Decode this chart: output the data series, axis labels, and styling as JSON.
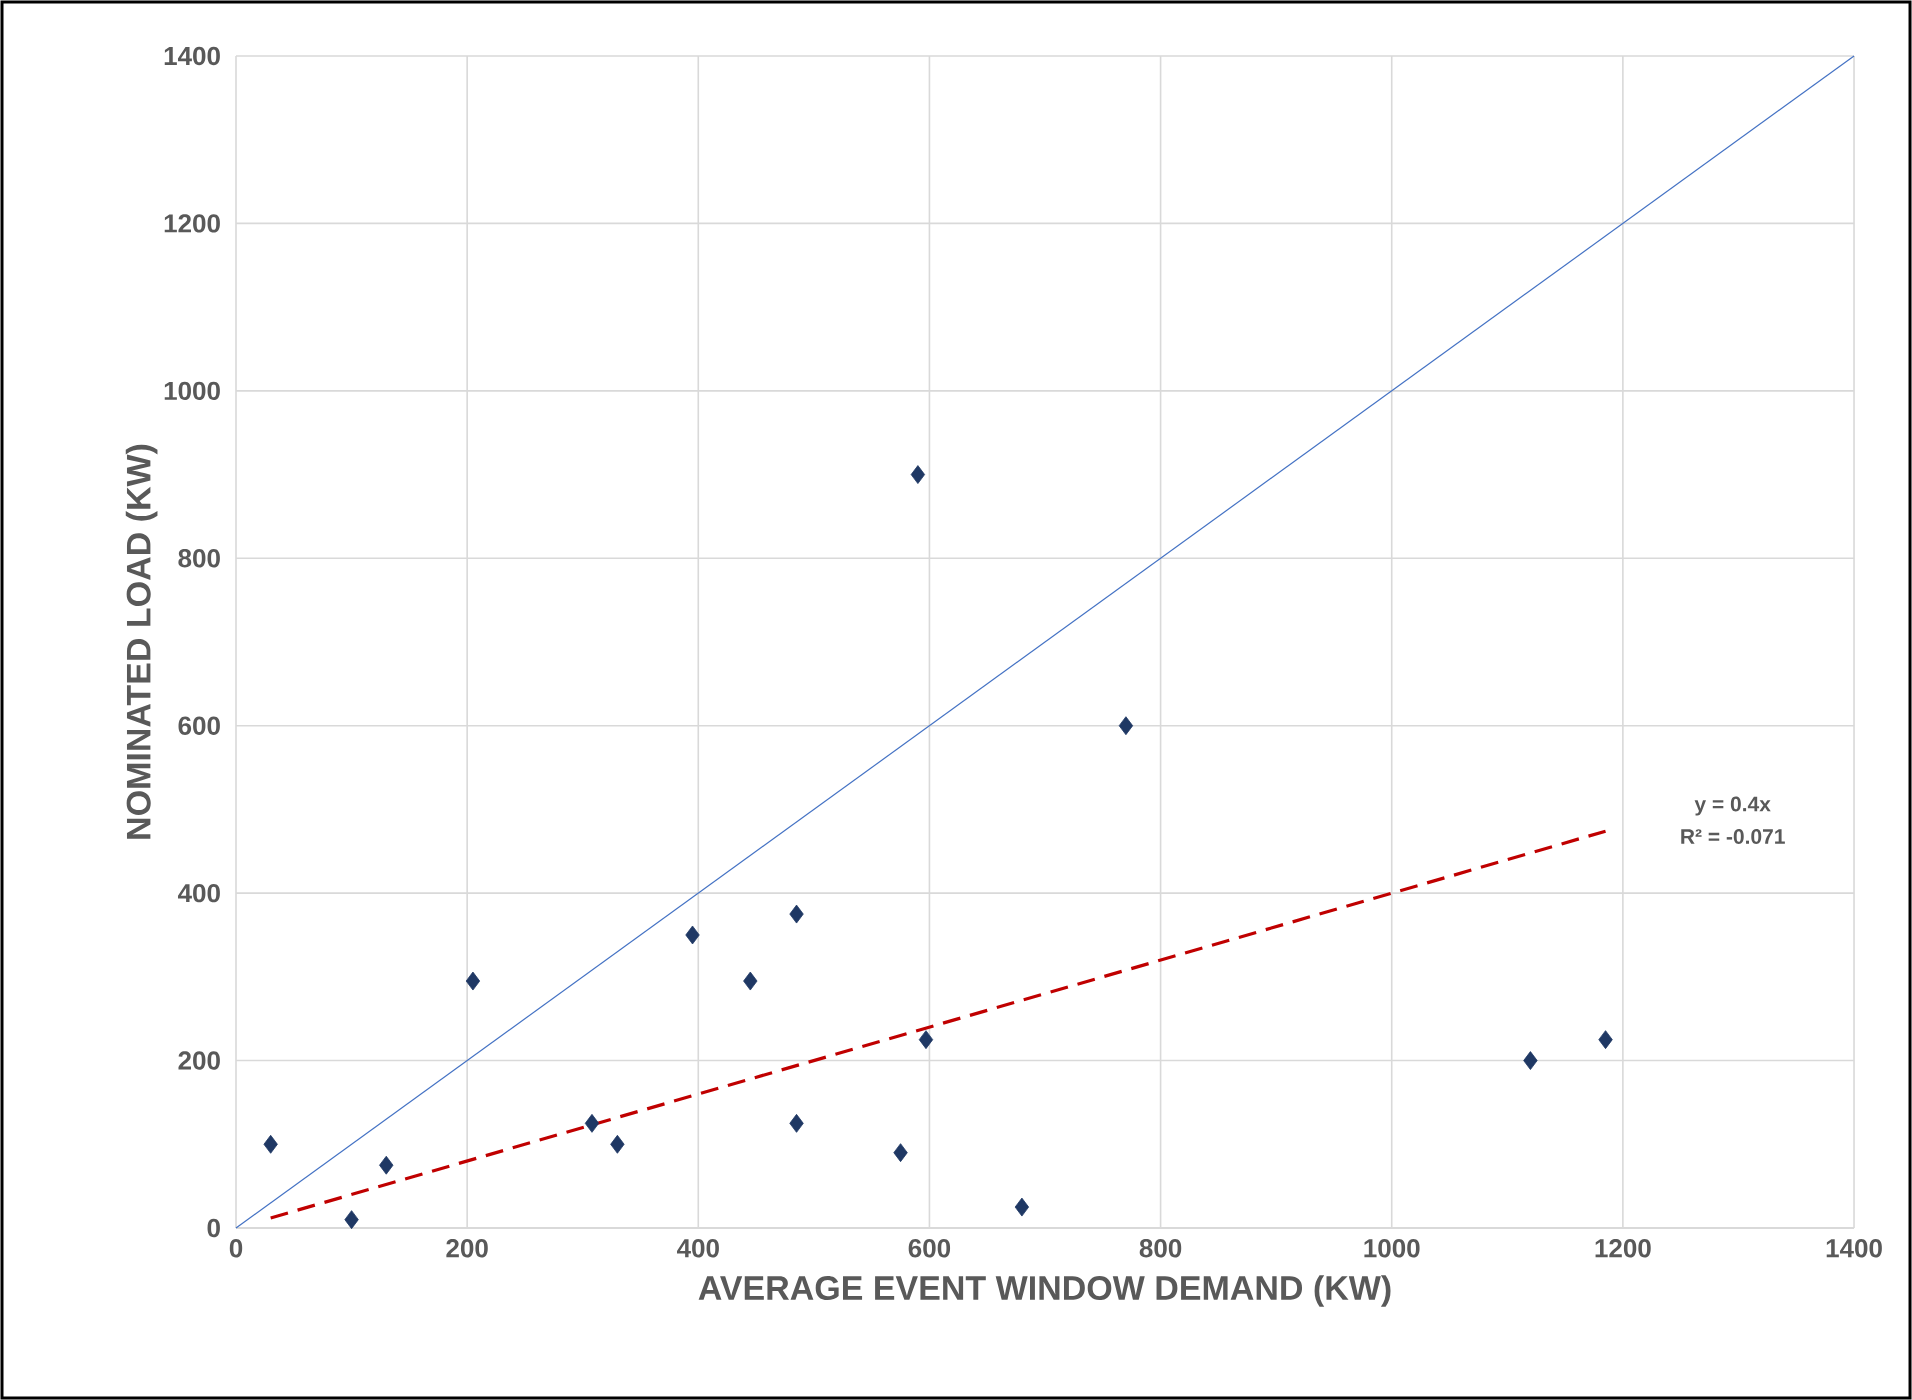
{
  "chart_data": {
    "type": "scatter",
    "xlabel": "AVERAGE EVENT WINDOW DEMAND (KW)",
    "ylabel": "NOMINATED LOAD (KW)",
    "xlim": [
      0,
      1400
    ],
    "ylim": [
      0,
      1400
    ],
    "xticks": [
      0,
      200,
      400,
      600,
      800,
      1000,
      1200,
      1400
    ],
    "yticks": [
      0,
      200,
      400,
      600,
      800,
      1000,
      1200,
      1400
    ],
    "grid": true,
    "series": [
      {
        "color": "#1f3864",
        "marker": "diamond",
        "x": [
          30,
          100,
          130,
          205,
          308,
          330,
          395,
          445,
          485,
          485,
          575,
          597,
          680,
          590,
          770,
          1120,
          1185
        ],
        "values": [
          100,
          10,
          75,
          295,
          125,
          100,
          350,
          295,
          375,
          125,
          90,
          225,
          25,
          900,
          600,
          200,
          225
        ]
      },
      {
        "type": "line",
        "color": "#4472c4",
        "marker": "none",
        "line_style": "solid",
        "x": [
          0,
          1400
        ],
        "values": [
          0,
          1400
        ]
      },
      {
        "type": "line",
        "color": "#c00000",
        "marker": "none",
        "line_style": "dashed",
        "x": [
          30,
          1185
        ],
        "values": [
          12,
          474
        ]
      }
    ],
    "annotations": [
      "y = 0.4x",
      "R² = -0.071"
    ]
  }
}
